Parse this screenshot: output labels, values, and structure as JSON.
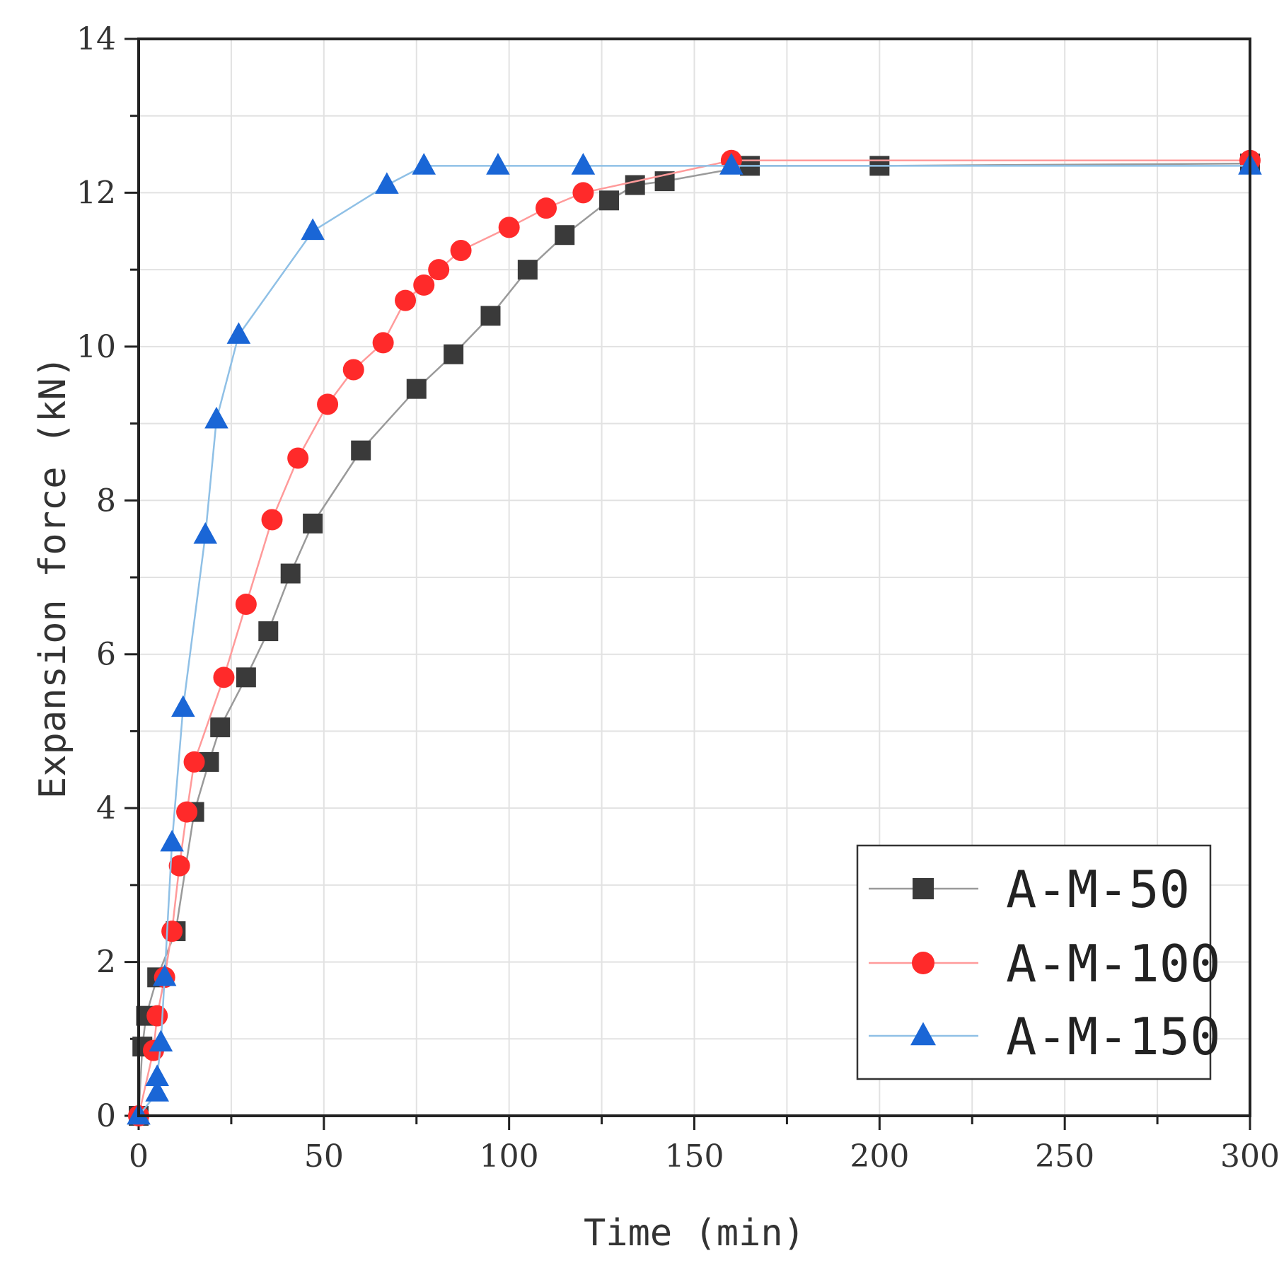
{
  "chart_data": {
    "type": "line",
    "title": "",
    "xlabel": "Time (min)",
    "ylabel": "Expansion force (kN)",
    "xlim": [
      0,
      300
    ],
    "ylim": [
      0,
      14
    ],
    "xticks": [
      "0",
      "50",
      "100",
      "150",
      "200",
      "250",
      "300"
    ],
    "yticks": [
      "0",
      "2",
      "4",
      "6",
      "8",
      "10",
      "12",
      "14"
    ],
    "grid": true,
    "legend_position": "bottom-right",
    "series": [
      {
        "name": "A-M-50",
        "color": "#3a3a3a",
        "line_color": "#9a9a9a",
        "marker": "square",
        "points": [
          [
            0,
            0
          ],
          [
            1,
            0.9
          ],
          [
            2,
            1.3
          ],
          [
            5,
            1.8
          ],
          [
            10,
            2.4
          ],
          [
            15,
            3.95
          ],
          [
            19,
            4.6
          ],
          [
            22,
            5.05
          ],
          [
            29,
            5.7
          ],
          [
            35,
            6.3
          ],
          [
            41,
            7.05
          ],
          [
            47,
            7.7
          ],
          [
            60,
            8.65
          ],
          [
            75,
            9.45
          ],
          [
            85,
            9.9
          ],
          [
            95,
            10.4
          ],
          [
            105,
            11.0
          ],
          [
            115,
            11.45
          ],
          [
            127,
            11.9
          ],
          [
            134,
            12.1
          ],
          [
            142,
            12.15
          ],
          [
            165,
            12.35
          ],
          [
            200,
            12.35
          ],
          [
            300,
            12.38
          ]
        ]
      },
      {
        "name": "A-M-100",
        "color": "#ff2a2a",
        "line_color": "#ff9a9a",
        "marker": "circle",
        "points": [
          [
            0,
            0
          ],
          [
            4,
            0.85
          ],
          [
            5,
            1.3
          ],
          [
            7,
            1.8
          ],
          [
            9,
            2.4
          ],
          [
            11,
            3.25
          ],
          [
            13,
            3.95
          ],
          [
            15,
            4.6
          ],
          [
            23,
            5.7
          ],
          [
            29,
            6.65
          ],
          [
            36,
            7.75
          ],
          [
            43,
            8.55
          ],
          [
            51,
            9.25
          ],
          [
            58,
            9.7
          ],
          [
            66,
            10.05
          ],
          [
            72,
            10.6
          ],
          [
            77,
            10.8
          ],
          [
            81,
            11.0
          ],
          [
            87,
            11.25
          ],
          [
            100,
            11.55
          ],
          [
            110,
            11.8
          ],
          [
            120,
            12.0
          ],
          [
            160,
            12.42
          ],
          [
            300,
            12.42
          ]
        ]
      },
      {
        "name": "A-M-150",
        "color": "#1a66d6",
        "line_color": "#8fc0e6",
        "marker": "triangle",
        "points": [
          [
            0,
            0
          ],
          [
            5,
            0.3
          ],
          [
            5,
            0.5
          ],
          [
            6,
            0.95
          ],
          [
            7,
            1.8
          ],
          [
            9,
            3.55
          ],
          [
            12,
            5.3
          ],
          [
            18,
            7.55
          ],
          [
            21,
            9.05
          ],
          [
            27,
            10.15
          ],
          [
            47,
            11.5
          ],
          [
            67,
            12.1
          ],
          [
            77,
            12.35
          ],
          [
            97,
            12.35
          ],
          [
            120,
            12.35
          ],
          [
            160,
            12.35
          ],
          [
            300,
            12.35
          ]
        ]
      }
    ]
  }
}
